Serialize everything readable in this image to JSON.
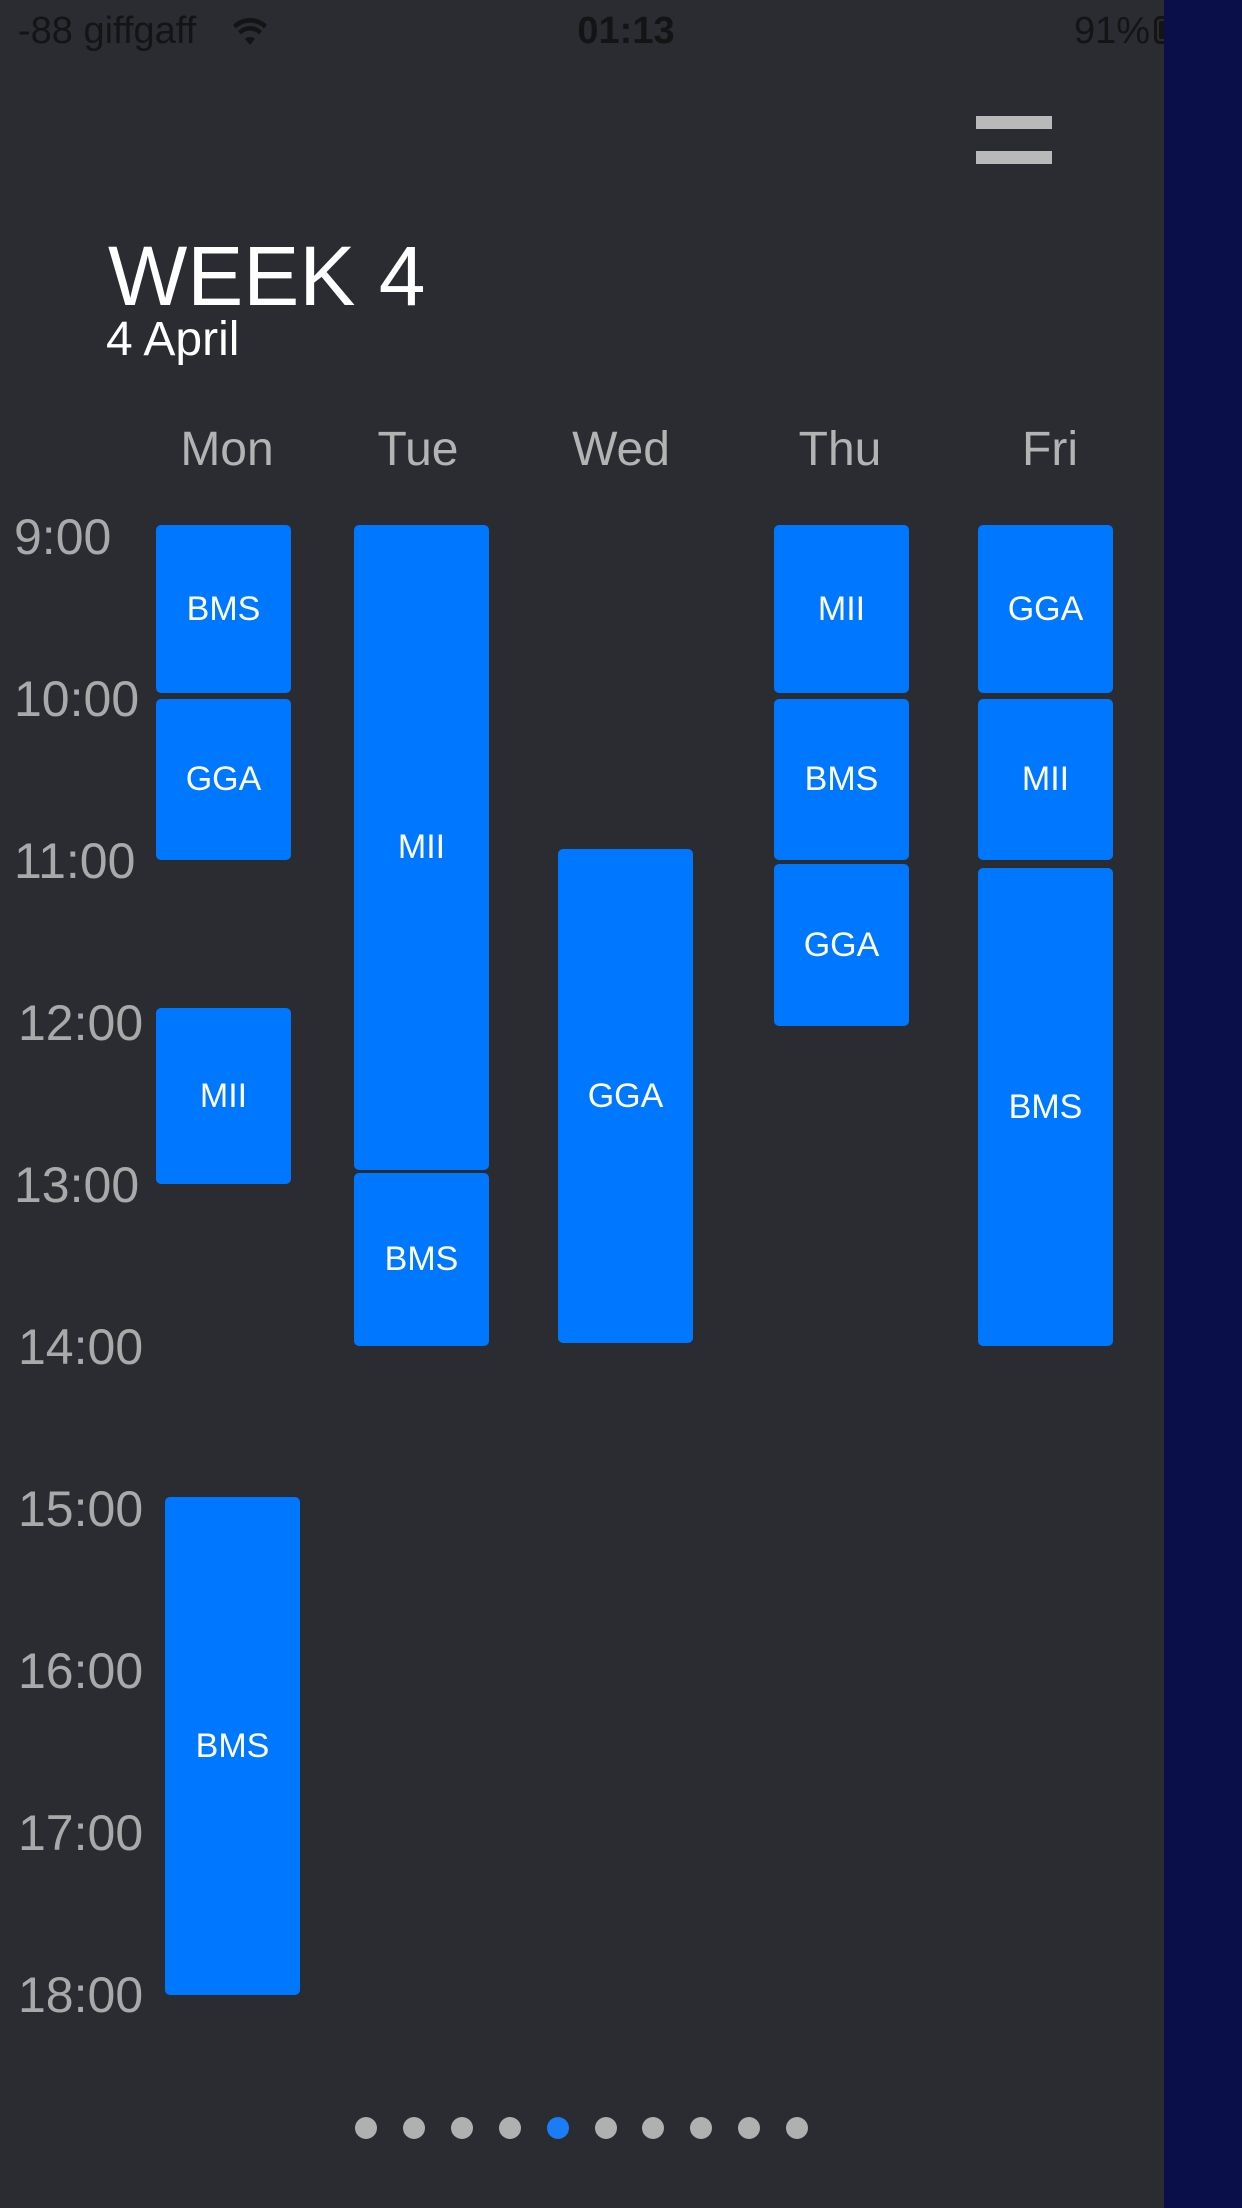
{
  "status_bar": {
    "carrier": "-88 giffgaff",
    "wifi_icon": "wifi-icon",
    "time": "01:13",
    "battery_percent": "91%",
    "battery_level": 0.91,
    "battery_icon": "battery-icon"
  },
  "menu": {
    "icon": "hamburger-menu-icon"
  },
  "header": {
    "title": "WEEK 4",
    "date": "4 April"
  },
  "days": [
    "Mon",
    "Tue",
    "Wed",
    "Thu",
    "Fri"
  ],
  "times": [
    "9:00",
    "10:00",
    "11:00",
    "12:00",
    "13:00",
    "14:00",
    "15:00",
    "16:00",
    "17:00",
    "18:00"
  ],
  "classes": {
    "mon": [
      {
        "label": "BMS",
        "start": "9:00",
        "end": "10:00"
      },
      {
        "label": "GGA",
        "start": "10:00",
        "end": "11:00"
      },
      {
        "label": "MII",
        "start": "12:00",
        "end": "13:00"
      },
      {
        "label": "BMS",
        "start": "15:00",
        "end": "18:00"
      }
    ],
    "tue": [
      {
        "label": "MII",
        "start": "9:00",
        "end": "13:00"
      },
      {
        "label": "BMS",
        "start": "13:00",
        "end": "14:00"
      }
    ],
    "wed": [
      {
        "label": "GGA",
        "start": "11:00",
        "end": "14:00"
      }
    ],
    "thu": [
      {
        "label": "MII",
        "start": "9:00",
        "end": "10:00"
      },
      {
        "label": "BMS",
        "start": "10:00",
        "end": "11:00"
      },
      {
        "label": "GGA",
        "start": "11:00",
        "end": "12:00"
      }
    ],
    "fri": [
      {
        "label": "GGA",
        "start": "9:00",
        "end": "10:00"
      },
      {
        "label": "MII",
        "start": "10:00",
        "end": "11:00"
      },
      {
        "label": "BMS",
        "start": "11:00",
        "end": "14:00"
      }
    ]
  },
  "pager": {
    "pages": 10,
    "current": 5
  },
  "colors": {
    "background": "#2a2c32",
    "side_strip": "#0a0f4a",
    "class_block": "#0077ff",
    "active_dot": "#1a7cf6",
    "inactive_dot": "#b0b0b0"
  }
}
